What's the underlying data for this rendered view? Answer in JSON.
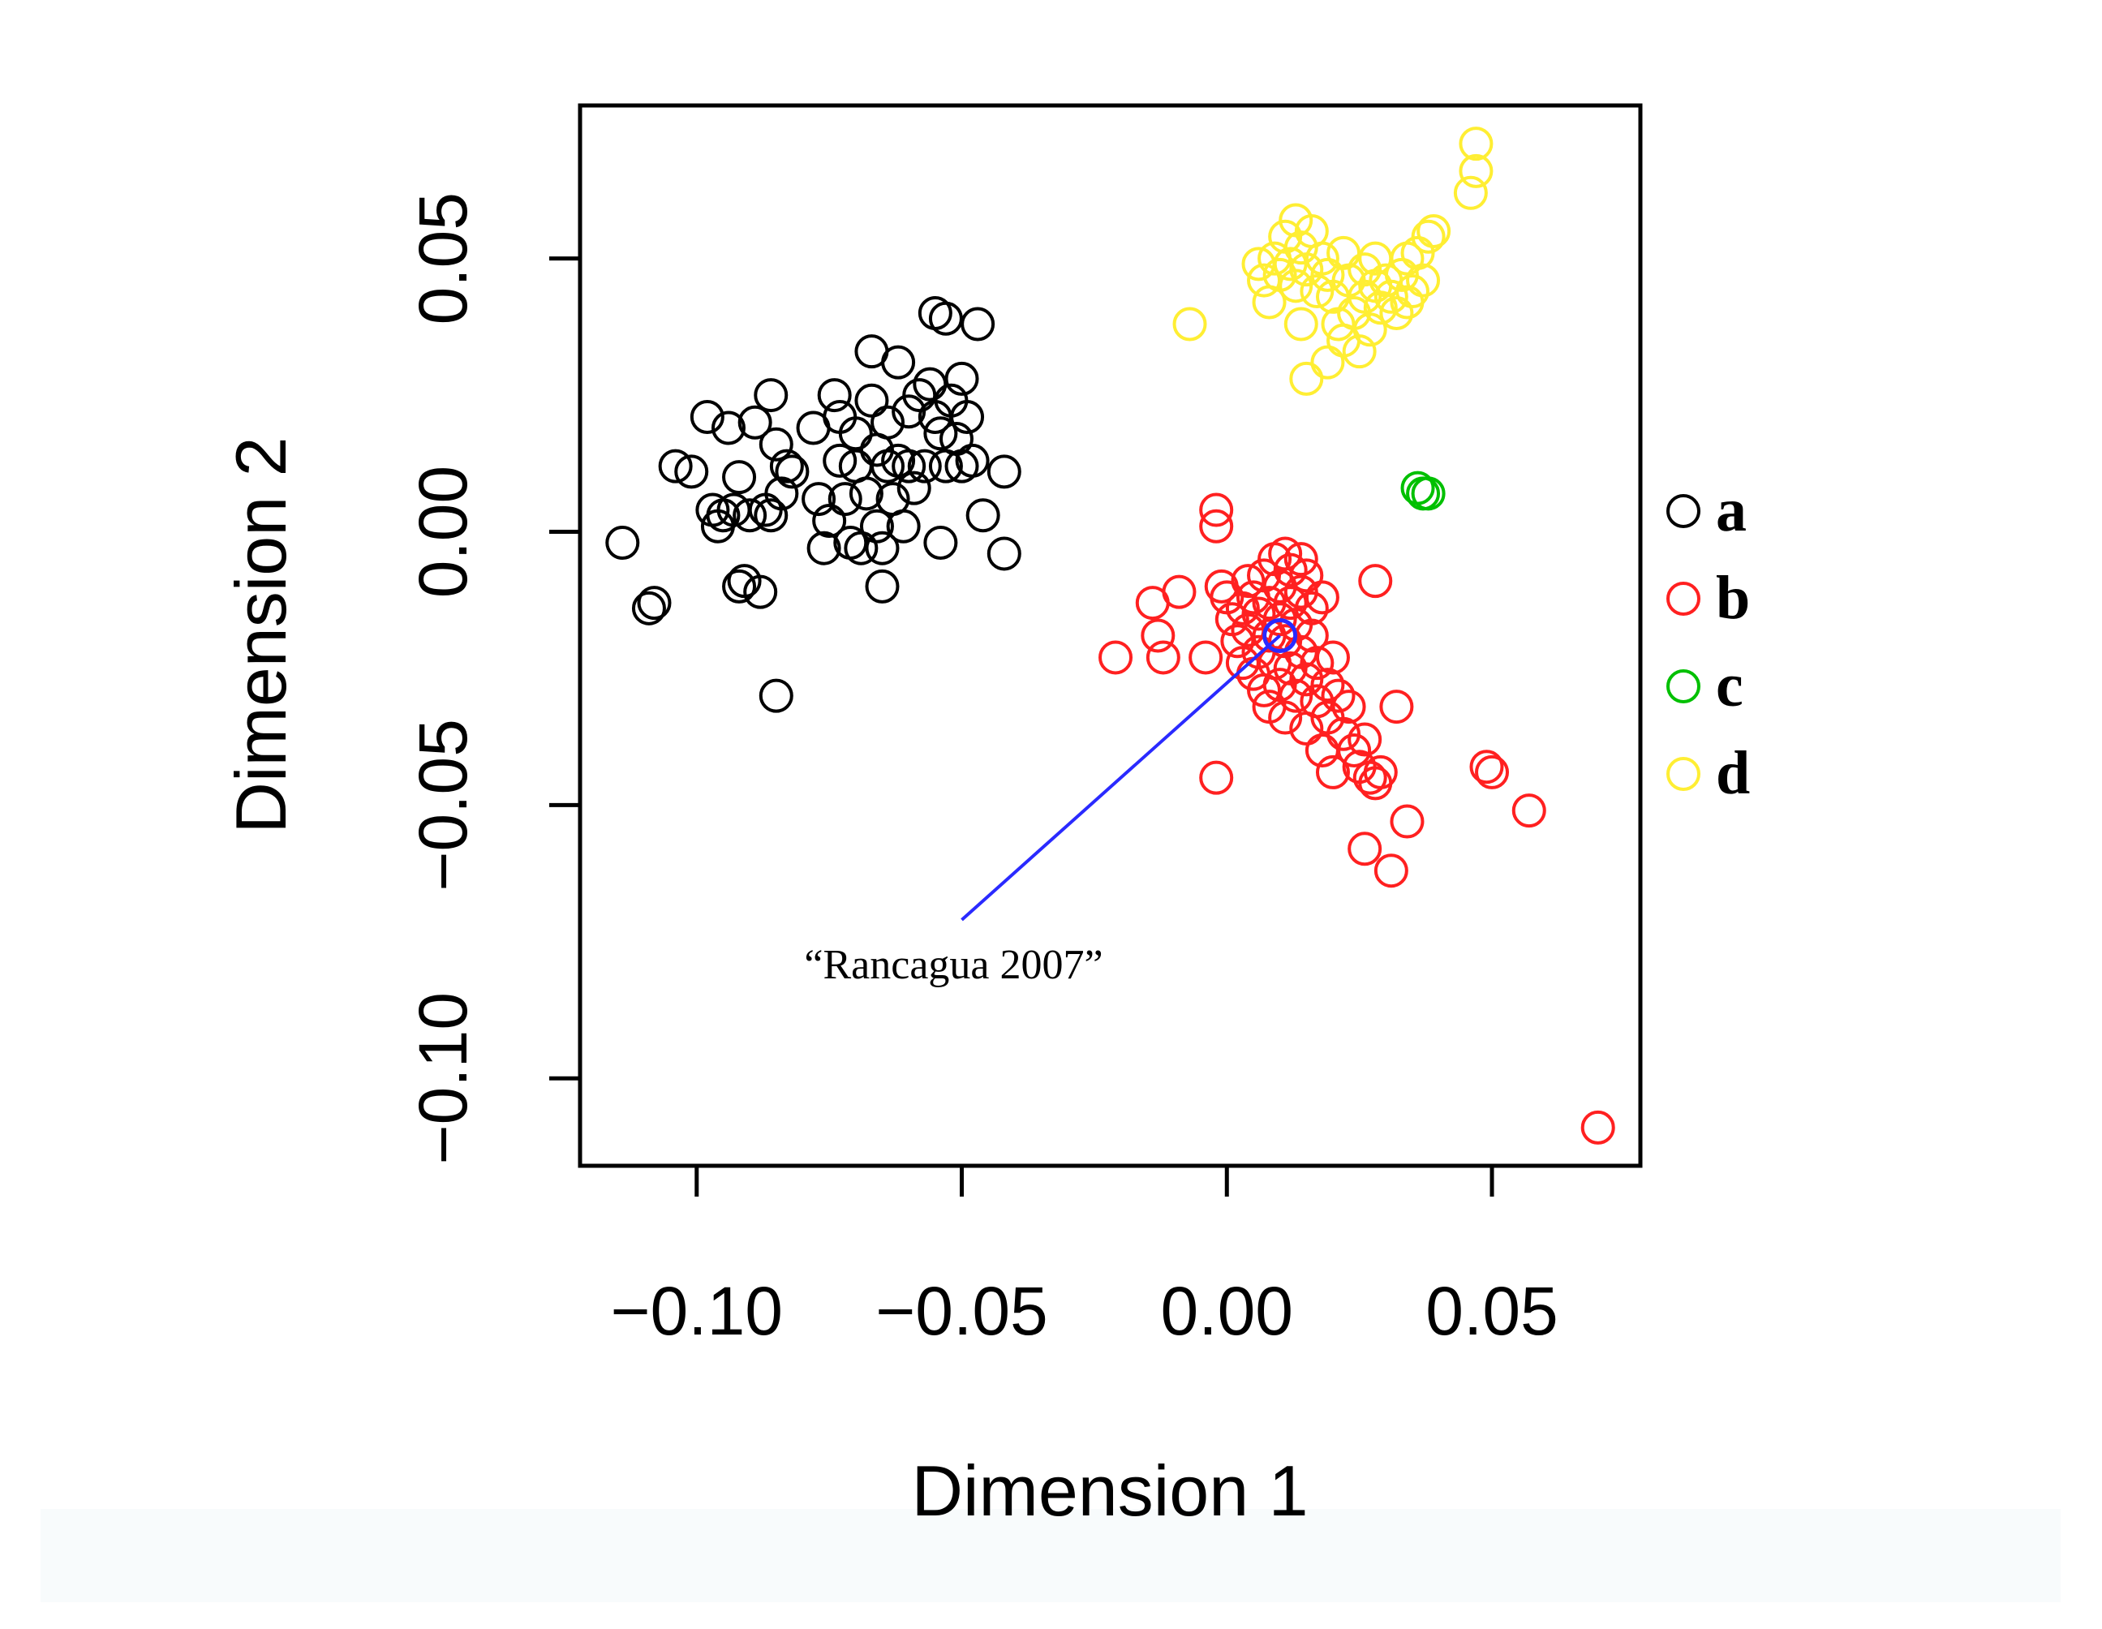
{
  "chart_data": {
    "type": "scatter",
    "xlabel": "Dimension 1",
    "ylabel": "Dimension 2",
    "xlim": [
      -0.122,
      0.078
    ],
    "ylim": [
      -0.116,
      0.078
    ],
    "xticks": [
      -0.1,
      -0.05,
      0.0,
      0.05
    ],
    "xtick_labels": [
      "−0.10",
      "−0.05",
      "0.00",
      "0.05"
    ],
    "yticks": [
      -0.1,
      -0.05,
      0.0,
      0.05
    ],
    "ytick_labels": [
      "−0.10",
      "−0.05",
      "0.00",
      "0.05"
    ],
    "legend_position": "right",
    "series": [
      {
        "name": "a",
        "color": "#000000",
        "points": [
          [
            -0.114,
            -0.002
          ],
          [
            -0.109,
            -0.014
          ],
          [
            -0.108,
            -0.013
          ],
          [
            -0.104,
            0.012
          ],
          [
            -0.101,
            0.011
          ],
          [
            -0.098,
            0.021
          ],
          [
            -0.097,
            0.004
          ],
          [
            -0.096,
            0.001
          ],
          [
            -0.095,
            0.003
          ],
          [
            -0.094,
            0.019
          ],
          [
            -0.093,
            0.004
          ],
          [
            -0.092,
            0.01
          ],
          [
            -0.092,
            -0.01
          ],
          [
            -0.091,
            -0.009
          ],
          [
            -0.09,
            0.003
          ],
          [
            -0.089,
            0.02
          ],
          [
            -0.088,
            -0.011
          ],
          [
            -0.087,
            0.004
          ],
          [
            -0.086,
            0.025
          ],
          [
            -0.086,
            0.003
          ],
          [
            -0.085,
            0.016
          ],
          [
            -0.084,
            0.007
          ],
          [
            -0.083,
            0.012
          ],
          [
            -0.082,
            0.011
          ],
          [
            -0.085,
            -0.03
          ],
          [
            -0.078,
            0.019
          ],
          [
            -0.077,
            0.006
          ],
          [
            -0.076,
            -0.003
          ],
          [
            -0.075,
            0.002
          ],
          [
            -0.074,
            0.025
          ],
          [
            -0.073,
            0.021
          ],
          [
            -0.073,
            0.013
          ],
          [
            -0.072,
            0.006
          ],
          [
            -0.071,
            -0.002
          ],
          [
            -0.07,
            0.018
          ],
          [
            -0.07,
            0.012
          ],
          [
            -0.069,
            -0.003
          ],
          [
            -0.068,
            0.007
          ],
          [
            -0.067,
            0.033
          ],
          [
            -0.067,
            0.024
          ],
          [
            -0.066,
            0.015
          ],
          [
            -0.066,
            0.001
          ],
          [
            -0.065,
            -0.003
          ],
          [
            -0.065,
            -0.01
          ],
          [
            -0.064,
            0.02
          ],
          [
            -0.064,
            0.012
          ],
          [
            -0.063,
            0.006
          ],
          [
            -0.062,
            0.031
          ],
          [
            -0.062,
            0.013
          ],
          [
            -0.061,
            0.001
          ],
          [
            -0.06,
            0.022
          ],
          [
            -0.06,
            0.012
          ],
          [
            -0.059,
            0.008
          ],
          [
            -0.058,
            0.025
          ],
          [
            -0.057,
            0.012
          ],
          [
            -0.056,
            0.027
          ],
          [
            -0.055,
            0.021
          ],
          [
            -0.054,
            0.018
          ],
          [
            -0.053,
            0.012
          ],
          [
            -0.055,
            0.04
          ],
          [
            -0.053,
            0.039
          ],
          [
            -0.052,
            0.024
          ],
          [
            -0.051,
            0.017
          ],
          [
            -0.05,
            0.028
          ],
          [
            -0.05,
            0.012
          ],
          [
            -0.049,
            0.021
          ],
          [
            -0.048,
            0.013
          ],
          [
            -0.047,
            0.038
          ],
          [
            -0.046,
            0.003
          ],
          [
            -0.054,
            -0.002
          ],
          [
            -0.042,
            0.011
          ],
          [
            -0.042,
            -0.004
          ]
        ]
      },
      {
        "name": "b",
        "color": "#ff2020",
        "points": [
          [
            -0.021,
            -0.023
          ],
          [
            -0.014,
            -0.013
          ],
          [
            -0.013,
            -0.019
          ],
          [
            -0.012,
            -0.023
          ],
          [
            -0.009,
            -0.011
          ],
          [
            -0.004,
            -0.023
          ],
          [
            -0.002,
            0.004
          ],
          [
            -0.002,
            0.001
          ],
          [
            -0.002,
            -0.045
          ],
          [
            -0.001,
            -0.01
          ],
          [
            0.0,
            -0.012
          ],
          [
            0.001,
            -0.016
          ],
          [
            0.002,
            -0.02
          ],
          [
            0.003,
            -0.014
          ],
          [
            0.003,
            -0.024
          ],
          [
            0.004,
            -0.009
          ],
          [
            0.004,
            -0.018
          ],
          [
            0.005,
            -0.012
          ],
          [
            0.005,
            -0.026
          ],
          [
            0.006,
            -0.015
          ],
          [
            0.006,
            -0.022
          ],
          [
            0.007,
            -0.008
          ],
          [
            0.007,
            -0.029
          ],
          [
            0.008,
            -0.013
          ],
          [
            0.008,
            -0.019
          ],
          [
            0.008,
            -0.032
          ],
          [
            0.009,
            -0.005
          ],
          [
            0.009,
            -0.024
          ],
          [
            0.01,
            -0.01
          ],
          [
            0.01,
            -0.016
          ],
          [
            0.01,
            -0.028
          ],
          [
            0.011,
            -0.004
          ],
          [
            0.011,
            -0.02
          ],
          [
            0.011,
            -0.034
          ],
          [
            0.012,
            -0.007
          ],
          [
            0.012,
            -0.013
          ],
          [
            0.012,
            -0.025
          ],
          [
            0.013,
            -0.017
          ],
          [
            0.013,
            -0.03
          ],
          [
            0.014,
            -0.005
          ],
          [
            0.014,
            -0.011
          ],
          [
            0.014,
            -0.022
          ],
          [
            0.015,
            -0.008
          ],
          [
            0.015,
            -0.027
          ],
          [
            0.015,
            -0.036
          ],
          [
            0.016,
            -0.014
          ],
          [
            0.016,
            -0.019
          ],
          [
            0.017,
            -0.024
          ],
          [
            0.017,
            -0.031
          ],
          [
            0.018,
            -0.012
          ],
          [
            0.018,
            -0.04
          ],
          [
            0.019,
            -0.028
          ],
          [
            0.019,
            -0.034
          ],
          [
            0.02,
            -0.023
          ],
          [
            0.02,
            -0.044
          ],
          [
            0.021,
            -0.03
          ],
          [
            0.022,
            -0.037
          ],
          [
            0.023,
            -0.032
          ],
          [
            0.024,
            -0.04
          ],
          [
            0.025,
            -0.043
          ],
          [
            0.026,
            -0.038
          ],
          [
            0.027,
            -0.045
          ],
          [
            0.028,
            -0.009
          ],
          [
            0.028,
            -0.046
          ],
          [
            0.029,
            -0.044
          ],
          [
            0.032,
            -0.032
          ],
          [
            0.026,
            -0.058
          ],
          [
            0.031,
            -0.062
          ],
          [
            0.034,
            -0.053
          ],
          [
            0.049,
            -0.043
          ],
          [
            0.05,
            -0.044
          ],
          [
            0.057,
            -0.051
          ],
          [
            0.07,
            -0.109
          ]
        ]
      },
      {
        "name": "c",
        "color": "#00c000",
        "points": [
          [
            0.036,
            0.008
          ],
          [
            0.037,
            0.007
          ],
          [
            0.038,
            0.007
          ]
        ]
      },
      {
        "name": "d",
        "color": "#ffee33",
        "points": [
          [
            -0.007,
            0.038
          ],
          [
            0.006,
            0.049
          ],
          [
            0.007,
            0.046
          ],
          [
            0.008,
            0.042
          ],
          [
            0.009,
            0.05
          ],
          [
            0.01,
            0.047
          ],
          [
            0.011,
            0.054
          ],
          [
            0.012,
            0.049
          ],
          [
            0.013,
            0.057
          ],
          [
            0.013,
            0.045
          ],
          [
            0.014,
            0.052
          ],
          [
            0.014,
            0.038
          ],
          [
            0.015,
            0.048
          ],
          [
            0.015,
            0.028
          ],
          [
            0.016,
            0.055
          ],
          [
            0.017,
            0.044
          ],
          [
            0.018,
            0.05
          ],
          [
            0.019,
            0.031
          ],
          [
            0.019,
            0.047
          ],
          [
            0.02,
            0.043
          ],
          [
            0.021,
            0.038
          ],
          [
            0.022,
            0.051
          ],
          [
            0.022,
            0.035
          ],
          [
            0.023,
            0.046
          ],
          [
            0.024,
            0.04
          ],
          [
            0.025,
            0.033
          ],
          [
            0.026,
            0.048
          ],
          [
            0.026,
            0.043
          ],
          [
            0.027,
            0.037
          ],
          [
            0.028,
            0.05
          ],
          [
            0.028,
            0.045
          ],
          [
            0.029,
            0.041
          ],
          [
            0.03,
            0.046
          ],
          [
            0.031,
            0.043
          ],
          [
            0.032,
            0.04
          ],
          [
            0.033,
            0.047
          ],
          [
            0.034,
            0.042
          ],
          [
            0.034,
            0.05
          ],
          [
            0.035,
            0.044
          ],
          [
            0.036,
            0.051
          ],
          [
            0.037,
            0.046
          ],
          [
            0.038,
            0.054
          ],
          [
            0.039,
            0.055
          ],
          [
            0.046,
            0.062
          ],
          [
            0.047,
            0.066
          ],
          [
            0.047,
            0.071
          ]
        ]
      }
    ],
    "highlight": {
      "label": "“Rancagua 2007”",
      "point": [
        0.01,
        -0.019
      ],
      "label_anchor": [
        -0.05,
        -0.071
      ],
      "color": "#2a2aff"
    },
    "legend": [
      "a",
      "b",
      "c",
      "d"
    ]
  }
}
